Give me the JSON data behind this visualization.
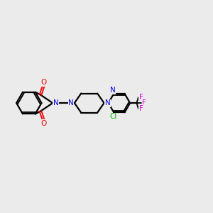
{
  "background_color": "#ebebeb",
  "bond_color": "#000000",
  "N_color": "#0000ee",
  "O_color": "#ee0000",
  "Cl_color": "#00aa00",
  "F_color": "#dd00dd",
  "figsize": [
    3.0,
    3.0
  ],
  "dpi": 100,
  "xlim": [
    0,
    12
  ],
  "ylim": [
    0,
    10
  ]
}
